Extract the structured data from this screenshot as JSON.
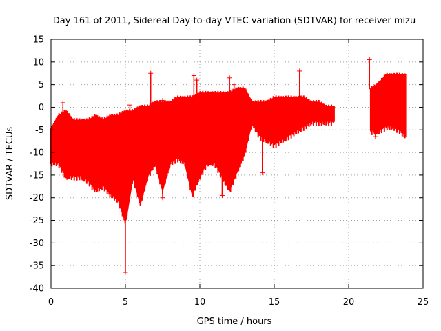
{
  "chart_data": {
    "type": "scatter",
    "title": "Day 161 of 2011, Sidereal Day-to-day VTEC variation (SDTVAR) for receiver mizu",
    "xlabel": "GPS time / hours",
    "ylabel": "SDTVAR / TECUs",
    "xlim": [
      0,
      25
    ],
    "ylim": [
      -40,
      15
    ],
    "x_ticks": [
      0,
      5,
      10,
      15,
      20,
      25
    ],
    "y_ticks": [
      15,
      10,
      5,
      0,
      -5,
      -10,
      -15,
      -20,
      -25,
      -30,
      -35,
      -40
    ],
    "grid": true,
    "marker": "+",
    "color": "#ff0000",
    "series": [
      {
        "name": "SDTVAR",
        "envelope": [
          {
            "x": 0.0,
            "low": -12,
            "high": -5
          },
          {
            "x": 0.5,
            "low": -12,
            "high": -2
          },
          {
            "x": 1.0,
            "low": -15,
            "high": -1
          },
          {
            "x": 1.5,
            "low": -15,
            "high": -3
          },
          {
            "x": 2.0,
            "low": -15,
            "high": -3
          },
          {
            "x": 2.5,
            "low": -16,
            "high": -3
          },
          {
            "x": 3.0,
            "low": -18,
            "high": -2
          },
          {
            "x": 3.5,
            "low": -17,
            "high": -3
          },
          {
            "x": 4.0,
            "low": -19,
            "high": -2
          },
          {
            "x": 4.5,
            "low": -20,
            "high": -2
          },
          {
            "x": 5.0,
            "low": -25,
            "high": -1
          },
          {
            "x": 5.5,
            "low": -15,
            "high": -1
          },
          {
            "x": 6.0,
            "low": -21,
            "high": 0
          },
          {
            "x": 6.5,
            "low": -15,
            "high": 0
          },
          {
            "x": 7.0,
            "low": -12,
            "high": 1
          },
          {
            "x": 7.5,
            "low": -18,
            "high": 1
          },
          {
            "x": 8.0,
            "low": -12,
            "high": 1
          },
          {
            "x": 8.5,
            "low": -11,
            "high": 2
          },
          {
            "x": 9.0,
            "low": -12,
            "high": 2
          },
          {
            "x": 9.5,
            "low": -19,
            "high": 2
          },
          {
            "x": 10.0,
            "low": -15,
            "high": 3
          },
          {
            "x": 10.5,
            "low": -12,
            "high": 3
          },
          {
            "x": 11.0,
            "low": -12,
            "high": 3
          },
          {
            "x": 11.5,
            "low": -15,
            "high": 3
          },
          {
            "x": 12.0,
            "low": -18,
            "high": 3
          },
          {
            "x": 12.5,
            "low": -14,
            "high": 4
          },
          {
            "x": 13.0,
            "low": -10,
            "high": 4
          },
          {
            "x": 13.5,
            "low": -3,
            "high": 1
          },
          {
            "x": 14.0,
            "low": -6,
            "high": 1
          },
          {
            "x": 14.5,
            "low": -7,
            "high": 1
          },
          {
            "x": 15.0,
            "low": -8,
            "high": 2
          },
          {
            "x": 15.5,
            "low": -7,
            "high": 2
          },
          {
            "x": 16.0,
            "low": -6,
            "high": 2
          },
          {
            "x": 16.5,
            "low": -5,
            "high": 2
          },
          {
            "x": 17.0,
            "low": -4,
            "high": 2
          },
          {
            "x": 17.5,
            "low": -3,
            "high": 1
          },
          {
            "x": 18.0,
            "low": -3,
            "high": 1
          },
          {
            "x": 18.5,
            "low": -3,
            "high": 0
          },
          {
            "x": 19.0,
            "low": -3,
            "high": 0
          },
          {
            "x": 21.5,
            "low": -5,
            "high": 4
          },
          {
            "x": 22.0,
            "low": -5,
            "high": 5
          },
          {
            "x": 22.5,
            "low": -4,
            "high": 7
          },
          {
            "x": 23.0,
            "low": -4,
            "high": 7
          },
          {
            "x": 23.5,
            "low": -5,
            "high": 7
          },
          {
            "x": 23.8,
            "low": -6,
            "high": 7
          }
        ],
        "spikes": [
          {
            "x": 0.8,
            "y": 1
          },
          {
            "x": 5.0,
            "y": -36.5
          },
          {
            "x": 5.3,
            "y": 0.5
          },
          {
            "x": 6.7,
            "y": 7.5
          },
          {
            "x": 7.5,
            "y": -20
          },
          {
            "x": 7.5,
            "y": 1.5
          },
          {
            "x": 9.6,
            "y": 7
          },
          {
            "x": 9.8,
            "y": 6
          },
          {
            "x": 11.5,
            "y": -19.5
          },
          {
            "x": 12.0,
            "y": 6.5
          },
          {
            "x": 12.3,
            "y": 5
          },
          {
            "x": 14.2,
            "y": -14.5
          },
          {
            "x": 16.7,
            "y": 8
          },
          {
            "x": 21.4,
            "y": 10.5
          },
          {
            "x": 21.8,
            "y": -6.5
          }
        ]
      }
    ]
  }
}
